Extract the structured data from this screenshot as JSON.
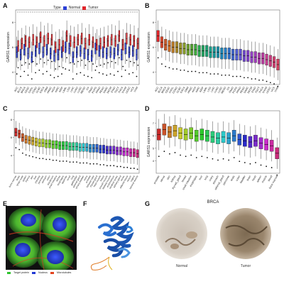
{
  "panels": {
    "A": "A",
    "B": "B",
    "C": "C",
    "D": "D",
    "E": "E",
    "F": "F",
    "G": "G"
  },
  "legend_a": {
    "title": "Type",
    "items": [
      {
        "label": "Normal",
        "color": "#2b3fd6"
      },
      {
        "label": "Tumor",
        "color": "#e0262b"
      }
    ]
  },
  "panel_g": {
    "title": "BRCA",
    "left_label": "Normal",
    "right_label": "Tumor"
  },
  "panel_e": {
    "legend": [
      {
        "label": "Target protein",
        "color": "#2ec32e"
      },
      {
        "label": "Nucleus",
        "color": "#2036d4"
      },
      {
        "label": "Microtubules",
        "color": "#e2431f"
      }
    ]
  },
  "chart_data": [
    {
      "id": "A",
      "type": "box",
      "ylabel": "GARS1 expression",
      "categories": [
        "ACC",
        "BLCA",
        "BRCA",
        "CESC",
        "CHOL",
        "COAD",
        "DLBC",
        "ESCA",
        "GBM",
        "HNSC",
        "KICH",
        "KIRC",
        "KIRP",
        "LAML",
        "LGG",
        "LIHC",
        "LUAD",
        "LUSC",
        "MESO",
        "OV",
        "PAAD",
        "PCPG",
        "PRAD",
        "READ",
        "SARC",
        "SKCM",
        "STAD",
        "TGCT",
        "THCA",
        "THYM",
        "UCEC",
        "UCS",
        "UVM"
      ],
      "series": [
        {
          "name": "Normal",
          "medians": [
            5.6,
            5.4,
            5.8,
            5.5,
            5.2,
            5.7,
            5.9,
            5.6,
            5.8,
            5.5,
            5.3,
            5.4,
            5.6,
            6.0,
            5.9,
            5.2,
            5.6,
            5.7,
            5.5,
            5.4,
            5.3,
            5.9,
            5.7,
            5.6,
            5.5,
            5.6,
            5.5,
            5.8,
            5.4,
            5.9,
            5.6,
            5.7,
            5.4
          ]
        },
        {
          "name": "Tumor",
          "medians": [
            6.1,
            6.3,
            6.5,
            6.4,
            6.6,
            6.4,
            6.8,
            6.5,
            6.7,
            6.6,
            6.0,
            6.2,
            6.1,
            6.9,
            6.5,
            6.4,
            6.6,
            6.7,
            6.3,
            6.6,
            6.4,
            6.2,
            6.3,
            6.4,
            6.5,
            6.6,
            6.5,
            6.9,
            6.2,
            6.7,
            6.6,
            6.5,
            6.3
          ]
        }
      ]
    },
    {
      "id": "B",
      "type": "box",
      "ylabel": "GARS1 expression",
      "categories": [
        "ACC",
        "BLCA",
        "BRCA",
        "CESC",
        "CHOL",
        "COAD",
        "DLBC",
        "ESCA",
        "GBM",
        "HNSC",
        "KICH",
        "KIRC",
        "KIRP",
        "LAML",
        "LGG",
        "LIHC",
        "LUAD",
        "LUSC",
        "MESO",
        "OV",
        "PAAD",
        "PCPG",
        "PRAD",
        "READ",
        "SARC",
        "SKCM",
        "STAD",
        "TGCT",
        "THCA",
        "THYM",
        "UCEC",
        "UCS",
        "UVM"
      ],
      "medians": [
        6.9,
        6.4,
        6.2,
        6.1,
        6.0,
        6.0,
        5.9,
        5.9,
        5.8,
        5.8,
        5.8,
        5.7,
        5.7,
        5.7,
        5.6,
        5.6,
        5.6,
        5.5,
        5.5,
        5.5,
        5.4,
        5.4,
        5.4,
        5.3,
        5.3,
        5.2,
        5.2,
        5.1,
        5.1,
        5.0,
        4.9,
        4.8,
        4.6
      ],
      "colors": [
        "#e0262b",
        "#d6452a",
        "#c85a2a",
        "#c96c29",
        "#b97a28",
        "#a98728",
        "#98912a",
        "#869a2c",
        "#6fa12f",
        "#58a535",
        "#3fa83f",
        "#2da64f",
        "#24a361",
        "#1fa073",
        "#1c9b86",
        "#1a9697",
        "#1b8fa8",
        "#1f86b6",
        "#277cc1",
        "#3272c9",
        "#4067cd",
        "#505dcf",
        "#6153cf",
        "#714acd",
        "#8142c8",
        "#9040c1",
        "#9e3eb8",
        "#ab3dac",
        "#b73d9e",
        "#c13d8f",
        "#c93e80",
        "#cf3f70",
        "#d44060"
      ]
    },
    {
      "id": "C",
      "type": "box",
      "categories": [
        "bone marrow",
        "testis",
        "lymph node",
        "spleen",
        "thymus",
        "skin",
        "liver",
        "placenta",
        "pancreas",
        "stomach",
        "colon",
        "duodenum",
        "small intestine",
        "kidney",
        "esophagus",
        "appendix",
        "tonsil",
        "lung",
        "gallbladder",
        "adrenal gland",
        "urinary bladder",
        "ovary",
        "prostate",
        "fallopian tube",
        "thyroid gland",
        "heart muscle",
        "breast",
        "smooth muscle",
        "skeletal muscle",
        "endometrium",
        "cerebral cortex",
        "salivary gland",
        "cervix",
        "adipose tissue",
        "rectum",
        "vagina",
        "seminal vesicle"
      ],
      "medians": [
        6.6,
        6.4,
        6.0,
        5.8,
        5.7,
        5.6,
        5.5,
        5.4,
        5.4,
        5.3,
        5.3,
        5.2,
        5.2,
        5.1,
        5.1,
        5.1,
        5.0,
        5.0,
        5.0,
        4.9,
        4.9,
        4.9,
        4.8,
        4.8,
        4.8,
        4.7,
        4.7,
        4.6,
        4.6,
        4.6,
        4.5,
        4.5,
        4.4,
        4.4,
        4.3,
        4.3,
        4.2
      ]
    },
    {
      "id": "D",
      "type": "box",
      "ylabel": "GARS1 expression",
      "categories": [
        "prostate",
        "uterus",
        "skin",
        "kidney",
        "thyroid_gland",
        "breast",
        "small intestine",
        "esophagus",
        "liver",
        "lung",
        "ovary",
        "stomach",
        "adrenal_gland",
        "pancreas",
        "testis",
        "colon",
        "bladder",
        "brain",
        "heart",
        "spleen",
        "muscle",
        "blood",
        "bone marrow"
      ],
      "medians": [
        6.1,
        6.5,
        6.3,
        6.4,
        6.2,
        6.1,
        6.2,
        6.0,
        6.1,
        6.0,
        5.9,
        5.8,
        5.9,
        5.8,
        6.0,
        5.7,
        5.6,
        5.5,
        5.6,
        5.4,
        5.3,
        5.2,
        4.6
      ]
    }
  ]
}
